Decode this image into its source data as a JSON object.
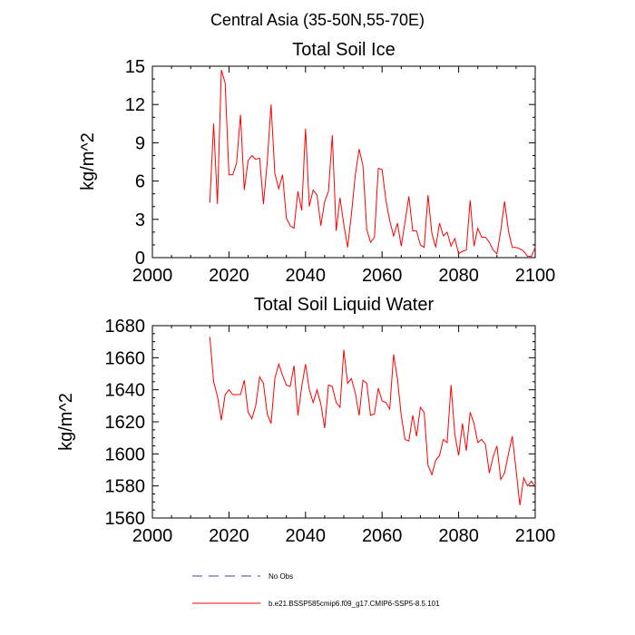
{
  "figure": {
    "suptitle": "Central Asia (35-50N,55-70E)"
  },
  "legend": {
    "items": [
      {
        "label": "No Obs",
        "color": "#4444aa",
        "dash": true
      },
      {
        "label": "b.e21.BSSP585cmip6.f09_g17.CMIP6-SSP5-8.5.101",
        "color": "#ff0000",
        "dash": false
      }
    ]
  },
  "chart_data": [
    {
      "type": "line",
      "title": "Total Soil Ice",
      "xlabel": "",
      "ylabel": "kg/m^2",
      "xlim": [
        2000,
        2100
      ],
      "ylim": [
        0,
        15
      ],
      "xticks": [
        2000,
        2020,
        2040,
        2060,
        2080,
        2100
      ],
      "yticks": [
        0,
        3,
        6,
        9,
        12,
        15
      ],
      "grid": false,
      "series": [
        {
          "name": "b.e21.BSSP585cmip6.f09_g17.CMIP6-SSP5-8.5.101",
          "color": "#ff0000",
          "x": [
            2015,
            2016,
            2017,
            2018,
            2019,
            2020,
            2021,
            2022,
            2023,
            2024,
            2025,
            2026,
            2027,
            2028,
            2029,
            2030,
            2031,
            2032,
            2033,
            2034,
            2035,
            2036,
            2037,
            2038,
            2039,
            2040,
            2041,
            2042,
            2043,
            2044,
            2045,
            2046,
            2047,
            2048,
            2049,
            2050,
            2051,
            2052,
            2053,
            2054,
            2055,
            2056,
            2057,
            2058,
            2059,
            2060,
            2061,
            2062,
            2063,
            2064,
            2065,
            2066,
            2067,
            2068,
            2069,
            2070,
            2071,
            2072,
            2073,
            2074,
            2075,
            2076,
            2077,
            2078,
            2079,
            2080,
            2081,
            2082,
            2083,
            2084,
            2085,
            2086,
            2087,
            2088,
            2089,
            2090,
            2091,
            2092,
            2093,
            2094,
            2095,
            2096,
            2097,
            2098,
            2099,
            2100
          ],
          "y": [
            4.3,
            10.5,
            4.2,
            14.7,
            13.7,
            6.5,
            6.5,
            7.4,
            11.2,
            5.3,
            7.6,
            8.0,
            7.7,
            7.8,
            4.2,
            7.5,
            12.0,
            6.6,
            5.4,
            6.5,
            3.1,
            2.5,
            2.3,
            5.2,
            3.7,
            10.1,
            4.0,
            5.3,
            4.9,
            2.5,
            4.4,
            5.2,
            9.6,
            2.1,
            4.7,
            2.6,
            0.8,
            3.4,
            6.5,
            8.5,
            7.2,
            2.2,
            1.2,
            1.6,
            7.0,
            6.9,
            4.5,
            2.9,
            1.7,
            2.7,
            0.9,
            2.8,
            4.8,
            2.1,
            2.1,
            1.0,
            0.8,
            4.9,
            1.9,
            0.8,
            2.7,
            1.7,
            2.0,
            0.9,
            1.5,
            0.3,
            0.5,
            0.6,
            4.5,
            0.9,
            2.3,
            1.6,
            1.6,
            1.2,
            0.6,
            0.3,
            2.1,
            4.4,
            2.1,
            0.8,
            0.8,
            0.7,
            0.5,
            0.1,
            0.1,
            0.8
          ]
        }
      ]
    },
    {
      "type": "line",
      "title": "Total Soil Liquid Water",
      "xlabel": "",
      "ylabel": "kg/m^2",
      "xlim": [
        2000,
        2100
      ],
      "ylim": [
        1560,
        1680
      ],
      "xticks": [
        2000,
        2020,
        2040,
        2060,
        2080,
        2100
      ],
      "yticks": [
        1560,
        1580,
        1600,
        1620,
        1640,
        1660,
        1680
      ],
      "grid": false,
      "series": [
        {
          "name": "b.e21.BSSP585cmip6.f09_g17.CMIP6-SSP5-8.5.101",
          "color": "#ff0000",
          "x": [
            2015,
            2016,
            2017,
            2018,
            2019,
            2020,
            2021,
            2022,
            2023,
            2024,
            2025,
            2026,
            2027,
            2028,
            2029,
            2030,
            2031,
            2032,
            2033,
            2034,
            2035,
            2036,
            2037,
            2038,
            2039,
            2040,
            2041,
            2042,
            2043,
            2044,
            2045,
            2046,
            2047,
            2048,
            2049,
            2050,
            2051,
            2052,
            2053,
            2054,
            2055,
            2056,
            2057,
            2058,
            2059,
            2060,
            2061,
            2062,
            2063,
            2064,
            2065,
            2066,
            2067,
            2068,
            2069,
            2070,
            2071,
            2072,
            2073,
            2074,
            2075,
            2076,
            2077,
            2078,
            2079,
            2080,
            2081,
            2082,
            2083,
            2084,
            2085,
            2086,
            2087,
            2088,
            2089,
            2090,
            2091,
            2092,
            2093,
            2094,
            2095,
            2096,
            2097,
            2098,
            2099,
            2100
          ],
          "y": [
            1673,
            1645,
            1636,
            1621,
            1637,
            1640,
            1637,
            1637,
            1637,
            1646,
            1626,
            1622,
            1630,
            1648,
            1644,
            1625,
            1619,
            1647,
            1656,
            1649,
            1643,
            1642,
            1655,
            1624,
            1642,
            1656,
            1640,
            1632,
            1640,
            1631,
            1616,
            1643,
            1642,
            1632,
            1629,
            1665,
            1644,
            1647,
            1638,
            1624,
            1646,
            1644,
            1624,
            1625,
            1641,
            1633,
            1632,
            1628,
            1662,
            1647,
            1624,
            1609,
            1608,
            1624,
            1611,
            1629,
            1626,
            1593,
            1587,
            1596,
            1599,
            1609,
            1607,
            1643,
            1612,
            1599,
            1619,
            1602,
            1626,
            1619,
            1607,
            1609,
            1606,
            1588,
            1598,
            1605,
            1584,
            1588,
            1600,
            1611,
            1590,
            1568,
            1585,
            1580,
            1583,
            1579
          ]
        }
      ]
    }
  ]
}
